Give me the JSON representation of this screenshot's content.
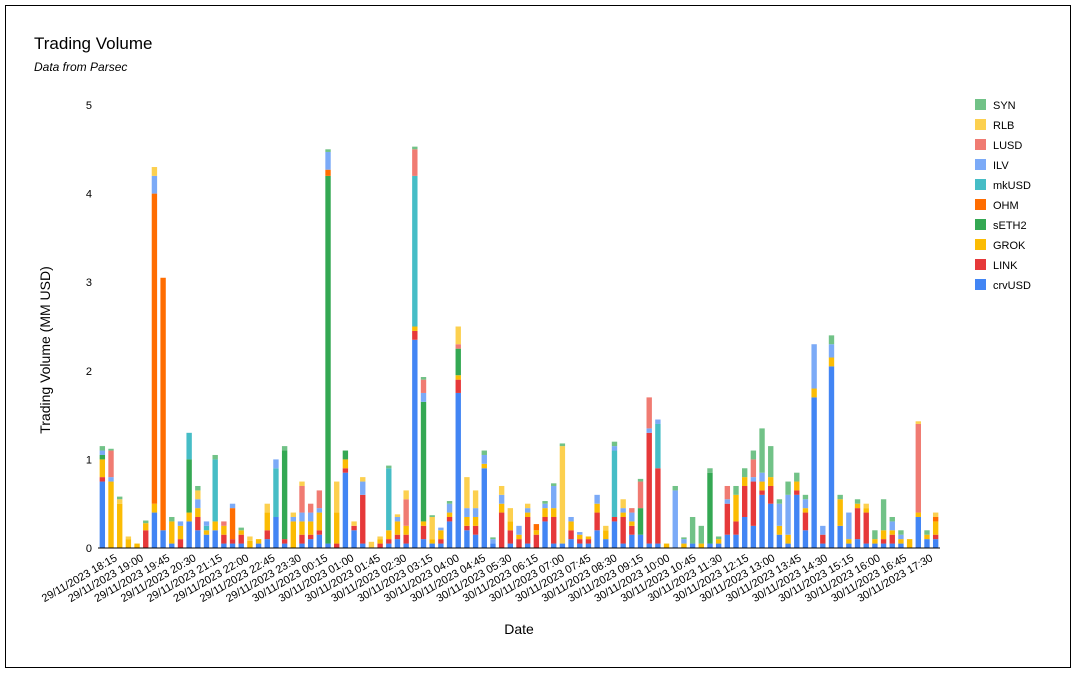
{
  "chart_data": {
    "type": "bar",
    "stacked": true,
    "title": "Trading Volume",
    "subtitle": "Data from Parsec",
    "xlabel": "Date",
    "ylabel": "Trading Volume (MM USD)",
    "ylim": [
      0,
      5
    ],
    "yticks": [
      "0",
      "1",
      "2",
      "3",
      "4",
      "5"
    ],
    "grid": false,
    "legend_position": "right",
    "x_tick_labels": [
      "29/11/2023 18:15",
      "29/11/2023 19:00",
      "29/11/2023 19:45",
      "29/11/2023 20:30",
      "29/11/2023 21:15",
      "29/11/2023 22:00",
      "29/11/2023 22:45",
      "29/11/2023 23:30",
      "30/11/2023 00:15",
      "30/11/2023 01:00",
      "30/11/2023 01:45",
      "30/11/2023 02:30",
      "30/11/2023 03:15",
      "30/11/2023 04:00",
      "30/11/2023 04:45",
      "30/11/2023 05:30",
      "30/11/2023 06:15",
      "30/11/2023 07:00",
      "30/11/2023 07:45",
      "30/11/2023 08:30",
      "30/11/2023 09:15",
      "30/11/2023 10:00",
      "30/11/2023 10:45",
      "30/11/2023 11:30",
      "30/11/2023 12:15",
      "30/11/2023 13:00",
      "30/11/2023 13:45",
      "30/11/2023 14:30",
      "30/11/2023 15:15",
      "30/11/2023 16:00",
      "30/11/2023 16:45",
      "30/11/2023 17:30"
    ],
    "series": [
      {
        "name": "crvUSD",
        "color": "#4285f4"
      },
      {
        "name": "LINK",
        "color": "#e6393a"
      },
      {
        "name": "GROK",
        "color": "#fbbc04"
      },
      {
        "name": "sETH2",
        "color": "#34a853"
      },
      {
        "name": "OHM",
        "color": "#ff6d01"
      },
      {
        "name": "mkUSD",
        "color": "#46bdc6"
      },
      {
        "name": "ILV",
        "color": "#7baaf7"
      },
      {
        "name": "LUSD",
        "color": "#f07b72"
      },
      {
        "name": "RLB",
        "color": "#fcd04f"
      },
      {
        "name": "SYN",
        "color": "#71c287"
      }
    ],
    "bars": [
      {
        "crvUSD": 0.75,
        "LINK": 0.05,
        "GROK": 0.2,
        "sETH2": 0.05,
        "ILV": 0.05,
        "SYN": 0.05
      },
      {
        "GROK": 0.75,
        "ILV": 0.05,
        "LUSD": 0.3,
        "SYN": 0.02
      },
      {
        "GROK": 0.5,
        "RLB": 0.05,
        "SYN": 0.03
      },
      {
        "GROK": 0.1,
        "RLB": 0.03
      },
      {
        "GROK": 0.05
      },
      {
        "LINK": 0.2,
        "GROK": 0.08,
        "SYN": 0.03
      },
      {
        "crvUSD": 0.4,
        "GROK": 0.1,
        "OHM": 3.5,
        "ILV": 0.2,
        "RLB": 0.1
      },
      {
        "crvUSD": 0.2,
        "OHM": 2.85
      },
      {
        "crvUSD": 0.05,
        "GROK": 0.25,
        "SYN": 0.05
      },
      {
        "LINK": 0.1,
        "GROK": 0.15,
        "ILV": 0.05
      },
      {
        "crvUSD": 0.3,
        "GROK": 0.1,
        "sETH2": 0.6,
        "mkUSD": 0.3
      },
      {
        "crvUSD": 0.2,
        "LINK": 0.15,
        "GROK": 0.1,
        "ILV": 0.1,
        "RLB": 0.1,
        "SYN": 0.05
      },
      {
        "crvUSD": 0.15,
        "GROK": 0.05,
        "ILV": 0.05,
        "mkUSD": 0.05
      },
      {
        "crvUSD": 0.2,
        "GROK": 0.1,
        "mkUSD": 0.7,
        "SYN": 0.05
      },
      {
        "crvUSD": 0.05,
        "LINK": 0.1,
        "GROK": 0.1,
        "LUSD": 0.05
      },
      {
        "crvUSD": 0.05,
        "LINK": 0.05,
        "OHM": 0.35,
        "ILV": 0.05
      },
      {
        "crvUSD": 0.05,
        "LINK": 0.1,
        "GROK": 0.05,
        "SYN": 0.03
      },
      {
        "GROK": 0.08,
        "RLB": 0.05
      },
      {
        "crvUSD": 0.05,
        "GROK": 0.05
      },
      {
        "crvUSD": 0.1,
        "LINK": 0.1,
        "GROK": 0.2,
        "RLB": 0.1
      },
      {
        "crvUSD": 0.35,
        "mkUSD": 0.55,
        "ILV": 0.1
      },
      {
        "crvUSD": 0.05,
        "LINK": 0.05,
        "sETH2": 1.0,
        "SYN": 0.05
      },
      {
        "GROK": 0.3,
        "ILV": 0.05,
        "RLB": 0.05
      },
      {
        "crvUSD": 0.05,
        "LINK": 0.1,
        "GROK": 0.15,
        "ILV": 0.1,
        "LUSD": 0.3,
        "RLB": 0.05
      },
      {
        "crvUSD": 0.1,
        "LINK": 0.05,
        "GROK": 0.15,
        "ILV": 0.1,
        "LUSD": 0.1
      },
      {
        "crvUSD": 0.15,
        "LINK": 0.05,
        "GROK": 0.2,
        "LUSD": 0.2,
        "ILV": 0.05
      },
      {
        "crvUSD": 0.05,
        "sETH2": 4.15,
        "OHM": 0.07,
        "ILV": 0.2,
        "SYN": 0.03
      },
      {
        "LINK": 0.05,
        "GROK": 0.35,
        "RLB": 0.35
      },
      {
        "crvUSD": 0.85,
        "GROK": 0.1,
        "sETH2": 0.1,
        "LINK": 0.05
      },
      {
        "crvUSD": 0.2,
        "LINK": 0.05,
        "RLB": 0.05
      },
      {
        "crvUSD": 0.05,
        "LINK": 0.55,
        "ILV": 0.15,
        "RLB": 0.05
      },
      {
        "RLB": 0.07
      },
      {
        "LINK": 0.05,
        "GROK": 0.05,
        "RLB": 0.03
      },
      {
        "crvUSD": 0.05,
        "LINK": 0.05,
        "GROK": 0.1,
        "mkUSD": 0.7,
        "SYN": 0.03
      },
      {
        "crvUSD": 0.1,
        "LINK": 0.05,
        "GROK": 0.15,
        "ILV": 0.05,
        "RLB": 0.03
      },
      {
        "crvUSD": 0.05,
        "LINK": 0.1,
        "GROK": 0.1,
        "LUSD": 0.3,
        "RLB": 0.1
      },
      {
        "crvUSD": 2.35,
        "LINK": 0.1,
        "GROK": 0.05,
        "mkUSD": 1.7,
        "LUSD": 0.3,
        "SYN": 0.03
      },
      {
        "crvUSD": 0.1,
        "LINK": 0.15,
        "GROK": 0.05,
        "sETH2": 1.35,
        "ILV": 0.1,
        "LUSD": 0.15,
        "SYN": 0.03
      },
      {
        "crvUSD": 0.05,
        "GROK": 0.05,
        "RLB": 0.25,
        "SYN": 0.02
      },
      {
        "crvUSD": 0.05,
        "LINK": 0.05,
        "GROK": 0.1,
        "ILV": 0.03
      },
      {
        "crvUSD": 0.3,
        "LINK": 0.05,
        "GROK": 0.05,
        "ILV": 0.1,
        "SYN": 0.03
      },
      {
        "crvUSD": 1.75,
        "LINK": 0.15,
        "GROK": 0.05,
        "sETH2": 0.3,
        "LUSD": 0.05,
        "RLB": 0.2
      },
      {
        "crvUSD": 0.2,
        "LINK": 0.05,
        "GROK": 0.1,
        "ILV": 0.1,
        "RLB": 0.35
      },
      {
        "crvUSD": 0.15,
        "LINK": 0.1,
        "GROK": 0.1,
        "ILV": 0.1,
        "RLB": 0.2
      },
      {
        "crvUSD": 0.9,
        "GROK": 0.05,
        "ILV": 0.1,
        "SYN": 0.05
      },
      {
        "crvUSD": 0.05,
        "ILV": 0.05,
        "SYN": 0.02
      },
      {
        "LINK": 0.4,
        "GROK": 0.1,
        "ILV": 0.1,
        "RLB": 0.1
      },
      {
        "crvUSD": 0.05,
        "LINK": 0.15,
        "GROK": 0.1,
        "RLB": 0.15
      },
      {
        "LINK": 0.1,
        "GROK": 0.05,
        "ILV": 0.1
      },
      {
        "crvUSD": 0.05,
        "LINK": 0.3,
        "GROK": 0.05,
        "ILV": 0.05,
        "RLB": 0.05
      },
      {
        "LINK": 0.15,
        "GROK": 0.05,
        "OHM": 0.07
      },
      {
        "crvUSD": 0.3,
        "LINK": 0.05,
        "GROK": 0.1,
        "ILV": 0.05,
        "SYN": 0.03
      },
      {
        "crvUSD": 0.05,
        "LINK": 0.3,
        "GROK": 0.1,
        "ILV": 0.25,
        "SYN": 0.03
      },
      {
        "crvUSD": 0.05,
        "RLB": 1.1,
        "SYN": 0.03
      },
      {
        "crvUSD": 0.1,
        "LINK": 0.1,
        "GROK": 0.1,
        "ILV": 0.05
      },
      {
        "crvUSD": 0.05,
        "LINK": 0.05,
        "GROK": 0.05,
        "ILV": 0.03
      },
      {
        "crvUSD": 0.05,
        "LINK": 0.05,
        "GROK": 0.03
      },
      {
        "crvUSD": 0.2,
        "LINK": 0.2,
        "GROK": 0.1,
        "ILV": 0.1
      },
      {
        "crvUSD": 0.1,
        "GROK": 0.1,
        "RLB": 0.05
      },
      {
        "crvUSD": 0.3,
        "LINK": 0.05,
        "mkUSD": 0.75,
        "ILV": 0.05,
        "SYN": 0.05
      },
      {
        "crvUSD": 0.05,
        "LINK": 0.3,
        "GROK": 0.05,
        "ILV": 0.05,
        "RLB": 0.1
      },
      {
        "crvUSD": 0.15,
        "LINK": 0.1,
        "GROK": 0.05,
        "ILV": 0.1,
        "LUSD": 0.05
      },
      {
        "crvUSD": 0.15,
        "sETH2": 0.3,
        "LUSD": 0.3,
        "SYN": 0.03
      },
      {
        "crvUSD": 0.05,
        "LINK": 1.25,
        "ILV": 0.05,
        "LUSD": 0.35
      },
      {
        "crvUSD": 0.05,
        "LINK": 0.85,
        "mkUSD": 0.5,
        "ILV": 0.05
      },
      {
        "GROK": 0.05
      },
      {
        "ILV": 0.65,
        "SYN": 0.05
      },
      {
        "GROK": 0.05,
        "ILV": 0.05,
        "SYN": 0.02
      },
      {
        "crvUSD": 0.05,
        "SYN": 0.3
      },
      {
        "GROK": 0.05,
        "SYN": 0.2
      },
      {
        "crvUSD": 0.05,
        "sETH2": 0.8,
        "SYN": 0.05
      },
      {
        "crvUSD": 0.05,
        "GROK": 0.05,
        "SYN": 0.03
      },
      {
        "crvUSD": 0.15,
        "LINK": 0.35,
        "ILV": 0.05,
        "LUSD": 0.15
      },
      {
        "crvUSD": 0.15,
        "LINK": 0.15,
        "GROK": 0.3,
        "SYN": 0.1
      },
      {
        "crvUSD": 0.35,
        "LINK": 0.35,
        "GROK": 0.1,
        "SYN": 0.1
      },
      {
        "crvUSD": 0.25,
        "LINK": 0.5,
        "ILV": 0.05,
        "LUSD": 0.2,
        "SYN": 0.1
      },
      {
        "crvUSD": 0.6,
        "LINK": 0.05,
        "GROK": 0.1,
        "ILV": 0.1,
        "SYN": 0.5
      },
      {
        "crvUSD": 0.5,
        "LINK": 0.2,
        "GROK": 0.1,
        "SYN": 0.35
      },
      {
        "crvUSD": 0.15,
        "GROK": 0.1,
        "ILV": 0.25,
        "SYN": 0.05
      },
      {
        "crvUSD": 0.05,
        "GROK": 0.1,
        "ILV": 0.45,
        "SYN": 0.15
      },
      {
        "crvUSD": 0.6,
        "LINK": 0.05,
        "GROK": 0.1,
        "SYN": 0.1
      },
      {
        "crvUSD": 0.2,
        "LINK": 0.2,
        "GROK": 0.05,
        "ILV": 0.1,
        "SYN": 0.05
      },
      {
        "crvUSD": 1.7,
        "GROK": 0.1,
        "ILV": 0.5
      },
      {
        "crvUSD": 0.05,
        "LINK": 0.1,
        "ILV": 0.1
      },
      {
        "crvUSD": 2.05,
        "GROK": 0.1,
        "ILV": 0.15,
        "SYN": 0.1
      },
      {
        "crvUSD": 0.25,
        "GROK": 0.3,
        "SYN": 0.05
      },
      {
        "crvUSD": 0.05,
        "GROK": 0.05,
        "ILV": 0.3
      },
      {
        "crvUSD": 0.1,
        "LINK": 0.35,
        "GROK": 0.05,
        "SYN": 0.05
      },
      {
        "crvUSD": 0.05,
        "LINK": 0.35,
        "GROK": 0.05,
        "RLB": 0.05
      },
      {
        "crvUSD": 0.05,
        "GROK": 0.05,
        "SYN": 0.1
      },
      {
        "crvUSD": 0.05,
        "LINK": 0.05,
        "GROK": 0.1,
        "SYN": 0.35
      },
      {
        "crvUSD": 0.05,
        "LINK": 0.1,
        "GROK": 0.05,
        "ILV": 0.1,
        "SYN": 0.05
      },
      {
        "crvUSD": 0.05,
        "GROK": 0.05,
        "ILV": 0.05,
        "SYN": 0.05
      },
      {
        "GROK": 0.1
      },
      {
        "crvUSD": 0.35,
        "GROK": 0.05,
        "LUSD": 1.0,
        "RLB": 0.03
      },
      {
        "crvUSD": 0.1,
        "GROK": 0.05,
        "SYN": 0.05
      },
      {
        "crvUSD": 0.1,
        "LINK": 0.05,
        "GROK": 0.15,
        "OHM": 0.05,
        "RLB": 0.05
      }
    ]
  }
}
